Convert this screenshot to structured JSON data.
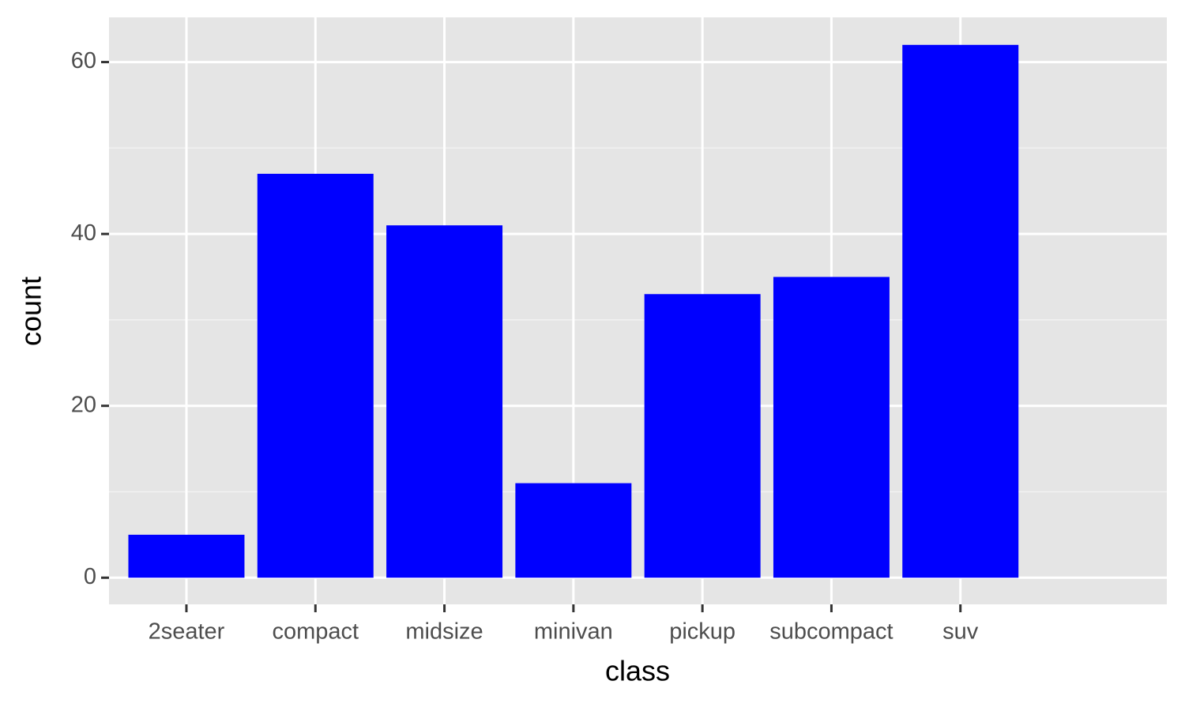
{
  "chart_data": {
    "type": "bar",
    "x_label": "class",
    "y_label": "count",
    "categories": [
      "2seater",
      "compact",
      "midsize",
      "minivan",
      "pickup",
      "subcompact",
      "suv"
    ],
    "values": [
      5,
      47,
      41,
      11,
      33,
      35,
      62
    ],
    "color": "#0000ff",
    "ylim": [
      -3.1,
      65.2
    ],
    "yticks": [
      0,
      20,
      40,
      60
    ],
    "minor_yticks": [
      10,
      30,
      50
    ],
    "grid": true
  }
}
